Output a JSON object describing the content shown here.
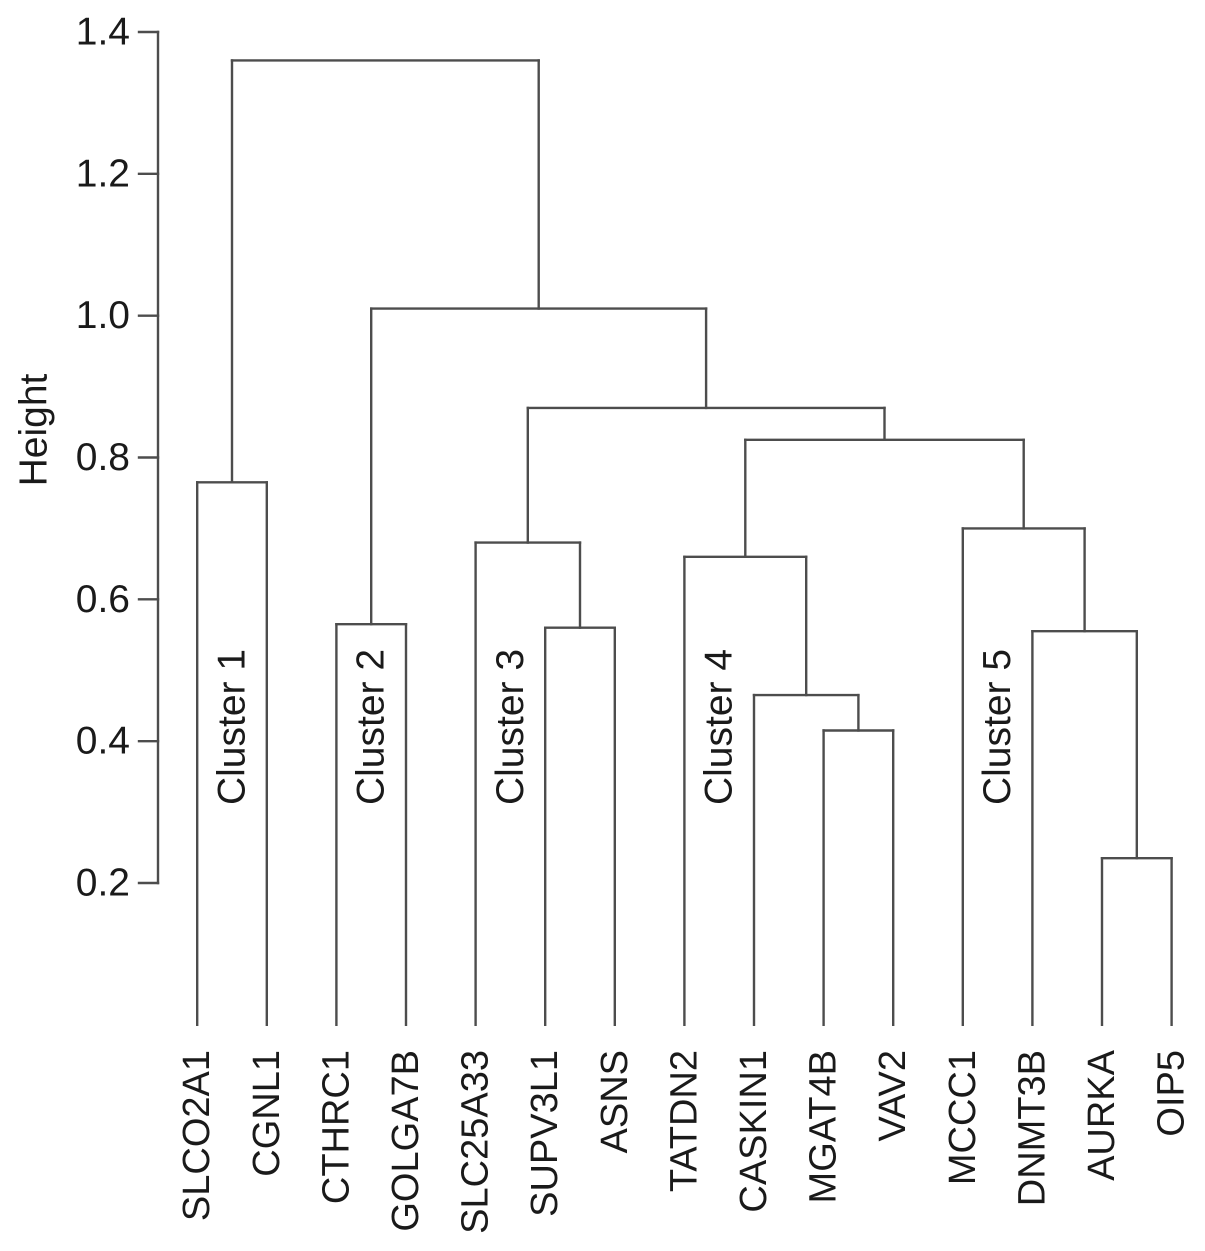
{
  "figure": {
    "background_color": "#ffffff",
    "line_color": "#4d4d4d",
    "text_color": "#1a1a1a",
    "cluster_label_color": "#2222CC"
  },
  "chart_data": {
    "type": "dendrogram",
    "title": "",
    "xlabel": "",
    "ylabel": "Height",
    "y_axis": {
      "ticks": [
        {
          "value": 1.4,
          "label": "1.4"
        },
        {
          "value": 1.2,
          "label": "1.2"
        },
        {
          "value": 1.0,
          "label": "1.0"
        },
        {
          "value": 0.8,
          "label": "0.8"
        },
        {
          "value": 0.6,
          "label": "0.6"
        },
        {
          "value": 0.4,
          "label": "0.4"
        },
        {
          "value": 0.2,
          "label": "0.2"
        }
      ],
      "axis_range_drawn": [
        0.2,
        1.4
      ],
      "grid": false
    },
    "leaf_order": [
      "SLCO2A1",
      "CGNL1",
      "CTHRC1",
      "GOLGA7B",
      "SLC25A33",
      "SUPV3L1",
      "ASNS",
      "TATDN2",
      "CASKIN1",
      "MGAT4B",
      "VAV2",
      "MCCC1",
      "DNMT3B",
      "AURKA",
      "OIP5"
    ],
    "leaf_height": 0,
    "tree": {
      "h": 1.36,
      "children": [
        {
          "h": 0.765,
          "children": [
            {
              "leaf": "SLCO2A1"
            },
            {
              "leaf": "CGNL1"
            }
          ]
        },
        {
          "h": 1.01,
          "children": [
            {
              "h": 0.565,
              "children": [
                {
                  "leaf": "CTHRC1"
                },
                {
                  "leaf": "GOLGA7B"
                }
              ]
            },
            {
              "h": 0.87,
              "children": [
                {
                  "h": 0.68,
                  "children": [
                    {
                      "leaf": "SLC25A33"
                    },
                    {
                      "h": 0.56,
                      "children": [
                        {
                          "leaf": "SUPV3L1"
                        },
                        {
                          "leaf": "ASNS"
                        }
                      ]
                    }
                  ]
                },
                {
                  "h": 0.825,
                  "children": [
                    {
                      "h": 0.66,
                      "children": [
                        {
                          "leaf": "TATDN2"
                        },
                        {
                          "h": 0.465,
                          "children": [
                            {
                              "leaf": "CASKIN1"
                            },
                            {
                              "h": 0.415,
                              "children": [
                                {
                                  "leaf": "MGAT4B"
                                },
                                {
                                  "leaf": "VAV2"
                                }
                              ]
                            }
                          ]
                        }
                      ]
                    },
                    {
                      "h": 0.7,
                      "children": [
                        {
                          "leaf": "MCCC1"
                        },
                        {
                          "h": 0.555,
                          "children": [
                            {
                              "leaf": "DNMT3B"
                            },
                            {
                              "h": 0.235,
                              "children": [
                                {
                                  "leaf": "AURKA"
                                },
                                {
                                  "leaf": "OIP5"
                                }
                              ]
                            }
                          ]
                        }
                      ]
                    }
                  ]
                }
              ]
            }
          ]
        }
      ]
    },
    "cluster_labels": [
      {
        "label": "Cluster 1",
        "x_leaf_units": 1.5,
        "y_height_units": 0.42,
        "color": "#2222CC",
        "members": [
          "SLCO2A1",
          "CGNL1"
        ]
      },
      {
        "label": "Cluster 2",
        "x_leaf_units": 3.5,
        "y_height_units": 0.42,
        "color": "#2222CC",
        "members": [
          "CTHRC1",
          "GOLGA7B"
        ]
      },
      {
        "label": "Cluster 3",
        "x_leaf_units": 5.5,
        "y_height_units": 0.42,
        "color": "#2222CC",
        "members": [
          "SLC25A33",
          "SUPV3L1",
          "ASNS"
        ]
      },
      {
        "label": "Cluster 4",
        "x_leaf_units": 8.5,
        "y_height_units": 0.42,
        "color": "#2222CC",
        "members": [
          "TATDN2",
          "CASKIN1",
          "MGAT4B",
          "VAV2"
        ]
      },
      {
        "label": "Cluster 5",
        "x_leaf_units": 12.5,
        "y_height_units": 0.42,
        "color": "#2222CC",
        "members": [
          "MCCC1",
          "DNMT3B",
          "AURKA",
          "OIP5"
        ]
      }
    ],
    "legend": null
  }
}
